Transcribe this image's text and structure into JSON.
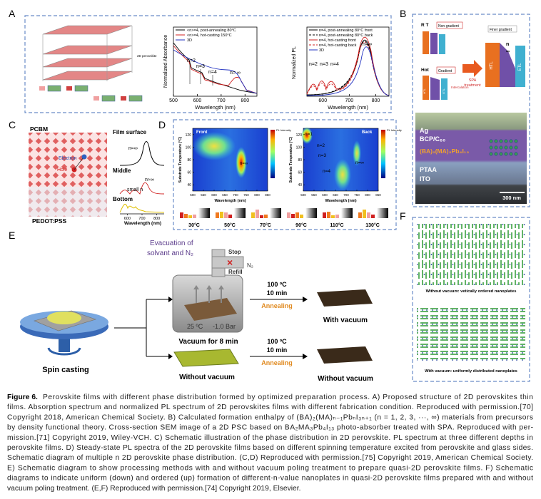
{
  "panel_a": {
    "label": "A",
    "stack_label": "2D perovskite",
    "absorbance_chart": {
      "legend": [
        "<n>=4, post-annealing 80°C",
        "<n>=4, hot-casting 150°C",
        "3D"
      ],
      "annotations": [
        "n=2",
        "n=3",
        "n=4",
        "n= ∞"
      ],
      "xticks": [
        500,
        600,
        700,
        800
      ],
      "xlabel": "Wavelength (nm)",
      "ylabel": "Normalized Absorbance"
    },
    "pl_chart": {
      "legend": [
        "n=4, post-annealing 80°C front",
        "n=4, post-annealing 80°C back",
        "n=4, hot-casting front",
        "n=4, hot-casting back",
        "3D"
      ],
      "annotations": [
        "n=2",
        "n=3",
        "n=4",
        "n=∞"
      ],
      "xticks": [
        600,
        700,
        800
      ],
      "xlabel": "Wavelength (nm)",
      "ylabel": "Normalized PL"
    }
  },
  "panel_b": {
    "label": "B",
    "schematic": {
      "rt": "R T",
      "non_gradient": "Non-gradient",
      "hot": "Hot",
      "gradient": "Gradient",
      "intercalation": "Intercalation",
      "spa": "SPA",
      "treatment": "treatment",
      "finer_gradient": "Finer gradient",
      "htl": "HTL",
      "etl": "ETL",
      "n": "n",
      "inf": "∞"
    },
    "sem": {
      "layers": [
        "Ag",
        "BCP/C₆₀",
        "(BA)₂(MA)₃Pb₄I₁₃",
        "PTAA",
        "ITO"
      ],
      "scale_bar": "300 nm"
    }
  },
  "panel_c": {
    "label": "C",
    "top": "PCBM",
    "bottom": "PEDOT:PSS",
    "electron": "Electron",
    "hole": "Hole",
    "depths": [
      "Film surface",
      "Middle",
      "Bottom"
    ],
    "annotations": [
      "n≈∞",
      "n≈∞",
      "small n"
    ],
    "xticks": [
      600,
      700,
      800
    ],
    "xlabel": "Wavelength (nm)"
  },
  "panel_d": {
    "label": "D",
    "maps": [
      {
        "title": "Front",
        "annotations": [
          "n=∞"
        ]
      },
      {
        "title": "Back",
        "annotations": [
          "n=1",
          "n=2",
          "n=3",
          "n=4",
          "n=∞"
        ]
      }
    ],
    "ylabel": "Substrate Temperature (°C)",
    "yticks": [
      40,
      60,
      80,
      100,
      120
    ],
    "xticks": [
      500,
      550,
      600,
      650,
      700,
      750,
      800,
      850
    ],
    "xlabel": "Wavelength (nm)",
    "colorbar_title": "PL Intensity",
    "temperatures": [
      "30°C",
      "50°C",
      "70°C",
      "90°C",
      "110°C",
      "130°C"
    ]
  },
  "panel_e": {
    "label": "E",
    "evacuation": [
      "Evacuation of",
      "solvant and N₂"
    ],
    "stop": "Stop",
    "n2": "N₂",
    "refill": "Refill",
    "temperature": "25 ºC",
    "pressure": "-1.0 Bar",
    "vacuum_time": "Vacuum for 8 min",
    "spin": "Spin casting",
    "with_vacuum": {
      "temp": "100 ºC",
      "time": "10 min",
      "step": "Annealing",
      "result": "With vacuum"
    },
    "without_vacuum": {
      "route": "Without vacuum",
      "temp": "100 ºC",
      "time": "10 min",
      "step": "Annealing",
      "result": "Without vacuum"
    }
  },
  "panel_f": {
    "label": "F",
    "captions": [
      "Without vacuum: vetically ordered nanoplates",
      "With vacuum: uniformly distributed nanoplates"
    ]
  },
  "caption": {
    "label": "Figure 6.",
    "lines": [
      "Perovskite films with different phase distribution formed by optimized preparation process. A) Proposed structure of 2D perovskites thin",
      "films. Absorption spectrum and normalized PL spectrum of 2D perovskites films with different fabrication condition. Reproduced with permission.[70]",
      "Copyright 2018, American Chemical Society. B) Calculated formation enthalpy of (BA)₂(MA)ₙ₋₁PbₙI₃ₙ₊₁ (n = 1, 2, 3, ···, ∞) materials from precursors",
      "by density functional theory. Cross-section SEM image of a 2D PSC based on BA₂MA₃Pb₄I₁₃ photo-absorber treated with SPA. Reproduced with per-",
      "mission.[71] Copyright 2019, Wiley-VCH. C) Schematic illustration of the phase distribution in 2D perovskite. PL spectrum at three different depths in",
      "perovskite films. D) Steady-state PL spectra of the 2D perovskite films based on different spinning temperature excited from perovskite and glass sides.",
      "Schematic diagram of multiple n 2D perovskite phase distribution. (C,D) Reproduced with permission.[75] Copyright 2019, American Chemical Society.",
      "E) Schematic diagram to show processing methods with and without vacuum poling treatment to prepare quasi-2D perovskite films. F) Schematic",
      "diagrams to indicate uniform (down) and ordered (up) formation of different-n-value nanoplates in quasi-2D perovskite films prepared with and without",
      "vacuum poling treatment. (E,F) Reproduced with permission.[74] Copyright 2019, Elsevier."
    ]
  }
}
